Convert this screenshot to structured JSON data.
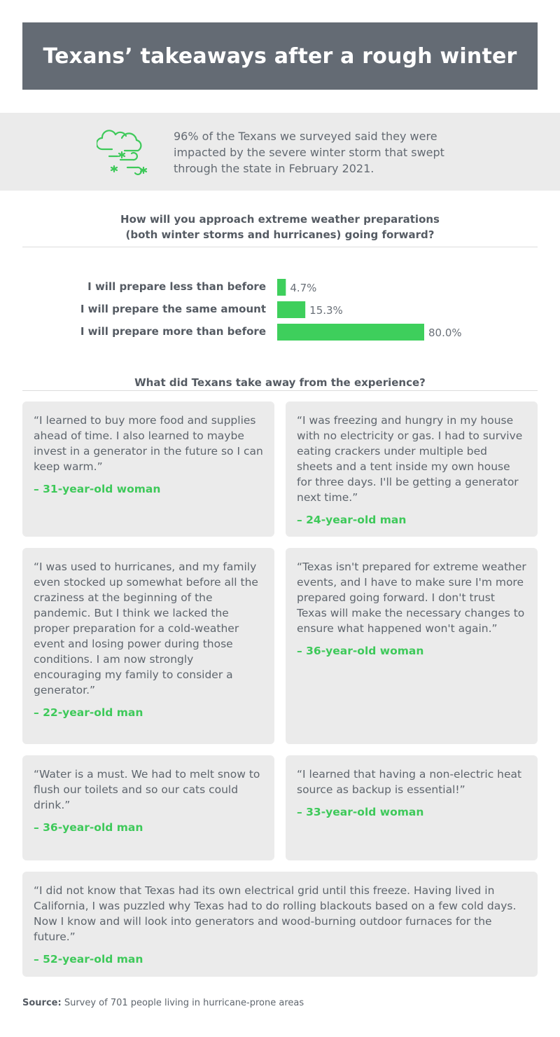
{
  "title": "Texans’ takeaways after a rough winter",
  "intro": {
    "icon": "winter-storm-icon",
    "text": "96% of the Texans we surveyed said they were impacted by the severe winter storm that swept through the state in February 2021."
  },
  "question1": {
    "line1": "How will you approach extreme weather preparations",
    "line2": "(both winter storms and hurricanes) going forward?"
  },
  "chart_data": {
    "type": "bar",
    "orientation": "horizontal",
    "title": "How will you approach extreme weather preparations (both winter storms and hurricanes) going forward?",
    "categories": [
      "I will prepare less than before",
      "I will prepare the same amount",
      "I will prepare more than before"
    ],
    "values": [
      4.7,
      15.3,
      80.0
    ],
    "value_labels": [
      "4.7%",
      "15.3%",
      "80.0%"
    ],
    "unit": "%",
    "xlim": [
      0,
      80
    ],
    "grid": false,
    "bar_color": "#3ecf5c"
  },
  "question2": "What did Texans take away from the experience?",
  "quotes": [
    {
      "text": "“I learned to buy more food and supplies ahead of time. I also learned to maybe invest in a generator in the future so I can keep warm.”",
      "author": "– 31-year-old woman"
    },
    {
      "text": "“I was freezing and hungry in my house with no electricity or gas. I had to survive eating crackers under multiple bed sheets and a tent inside my own house for three days. I'll be getting a generator next time.”",
      "author": "– 24-year-old man"
    },
    {
      "text": "“I was used to hurricanes, and my family even stocked up somewhat before all the craziness at the beginning of the pandemic. But I think we lacked the proper preparation for a cold-weather event and losing power during those conditions. I am now strongly encouraging my family to consider a generator.”",
      "author": "– 22-year-old man"
    },
    {
      "text": "“Texas isn't prepared for extreme weather events, and I have to make sure I'm more prepared going forward. I don't trust Texas will make the necessary changes to ensure what happened won't again.”",
      "author": "– 36-year-old woman"
    },
    {
      "text": "“Water is a must. We had to melt snow to flush our toilets and so our cats could drink.”",
      "author": "– 36-year-old man"
    },
    {
      "text": "“I learned that having a non-electric heat source as backup is essential!”",
      "author": "– 33-year-old woman"
    },
    {
      "text": "“I did not know that Texas had its own electrical grid until this freeze. Having lived in California, I was puzzled why Texas had to do rolling blackouts based on a few cold days. Now I know and will look into generators and wood-burning outdoor furnaces for the future.”",
      "author": "– 52-year-old man"
    }
  ],
  "source": {
    "label": "Source:",
    "text": "Survey of 701 people living in hurricane-prone areas"
  },
  "colors": {
    "title_bg": "#646b74",
    "panel_bg": "#ebebeb",
    "accent_green": "#3ec95a"
  }
}
